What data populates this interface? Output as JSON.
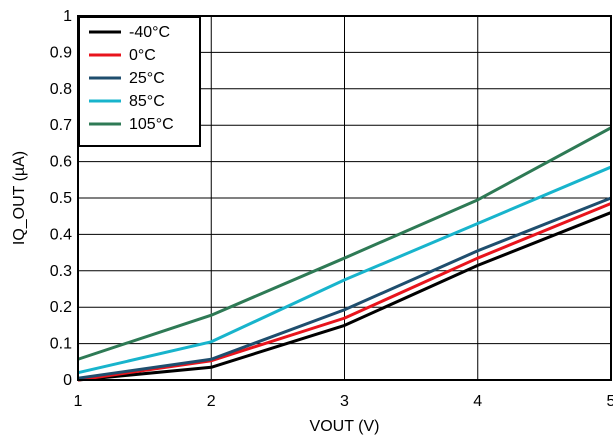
{
  "chart_data": {
    "type": "line",
    "title": "",
    "xlabel": "VOUT (V)",
    "ylabel": "IQ_OUT (µA)",
    "xlim": [
      1,
      5
    ],
    "ylim": [
      0,
      1
    ],
    "x_ticks": [
      "1",
      "2",
      "3",
      "4",
      "5"
    ],
    "y_ticks": [
      "0",
      "0.1",
      "0.2",
      "0.3",
      "0.4",
      "0.5",
      "0.6",
      "0.7",
      "0.8",
      "0.9",
      "1"
    ],
    "grid": true,
    "legend_position": "top-left",
    "x": [
      1,
      2,
      3,
      4,
      5
    ],
    "series": [
      {
        "name": "-40°C",
        "color": "#000000",
        "values": [
          0.0,
          0.035,
          0.15,
          0.315,
          0.46
        ]
      },
      {
        "name": "0°C",
        "color": "#e8141c",
        "values": [
          0.0,
          0.053,
          0.17,
          0.335,
          0.485
        ]
      },
      {
        "name": "25°C",
        "color": "#1f4e6e",
        "values": [
          0.005,
          0.057,
          0.193,
          0.355,
          0.5
        ]
      },
      {
        "name": "85°C",
        "color": "#18b4cc",
        "values": [
          0.02,
          0.105,
          0.275,
          0.43,
          0.585
        ]
      },
      {
        "name": "105°C",
        "color": "#2e7a55",
        "values": [
          0.057,
          0.178,
          0.335,
          0.495,
          0.693
        ]
      }
    ]
  }
}
